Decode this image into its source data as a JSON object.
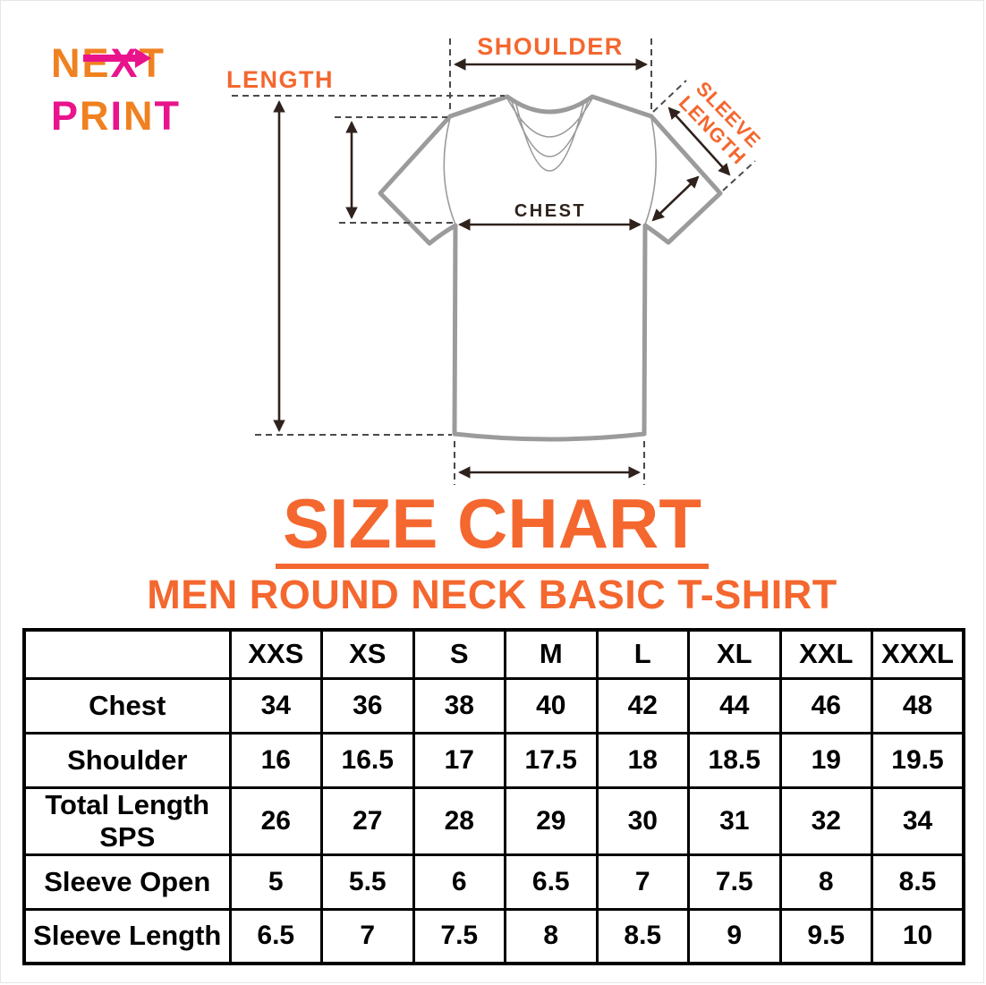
{
  "logo": {
    "line1": "NEXT",
    "line2": "PRINT",
    "line1_colors": [
      "o",
      "o",
      "m",
      "o"
    ],
    "line2_colors": [
      "m",
      "o",
      "m",
      "o",
      "m"
    ]
  },
  "diagram": {
    "labels": {
      "shoulder": "SHOULDER",
      "length": "LENGTH",
      "chest": "CHEST",
      "sleeve_line1": "SLEEVE",
      "sleeve_line2": "LENGTH"
    }
  },
  "title": "SIZE CHART",
  "subtitle": "MEN ROUND NECK BASIC T-SHIRT",
  "table": {
    "sizes": [
      "XXS",
      "XS",
      "S",
      "M",
      "L",
      "XL",
      "XXL",
      "XXXL"
    ],
    "rows": [
      {
        "label": "Chest",
        "values": [
          "34",
          "36",
          "38",
          "40",
          "42",
          "44",
          "46",
          "48"
        ]
      },
      {
        "label": "Shoulder",
        "values": [
          "16",
          "16.5",
          "17",
          "17.5",
          "18",
          "18.5",
          "19",
          "19.5"
        ]
      },
      {
        "label": "Total Length SPS",
        "values": [
          "26",
          "27",
          "28",
          "29",
          "30",
          "31",
          "32",
          "34"
        ]
      },
      {
        "label": "Sleeve Open",
        "values": [
          "5",
          "5.5",
          "6",
          "6.5",
          "7",
          "7.5",
          "8",
          "8.5"
        ]
      },
      {
        "label": "Sleeve Length",
        "values": [
          "6.5",
          "7",
          "7.5",
          "8",
          "8.5",
          "9",
          "9.5",
          "10"
        ]
      }
    ]
  },
  "chart_data": {
    "type": "table",
    "title": "SIZE CHART",
    "subtitle": "MEN ROUND NECK BASIC T-SHIRT",
    "columns": [
      "",
      "XXS",
      "XS",
      "S",
      "M",
      "L",
      "XL",
      "XXL",
      "XXXL"
    ],
    "rows": [
      [
        "Chest",
        34,
        36,
        38,
        40,
        42,
        44,
        46,
        48
      ],
      [
        "Shoulder",
        16,
        16.5,
        17,
        17.5,
        18,
        18.5,
        19,
        19.5
      ],
      [
        "Total Length SPS",
        26,
        27,
        28,
        29,
        30,
        31,
        32,
        34
      ],
      [
        "Sleeve Open",
        5,
        5.5,
        6,
        6.5,
        7,
        7.5,
        8,
        8.5
      ],
      [
        "Sleeve Length",
        6.5,
        7,
        7.5,
        8,
        8.5,
        9,
        9.5,
        10
      ]
    ]
  },
  "colors": {
    "accent_orange": "#F4672F",
    "logo_orange": "#F08121",
    "logo_magenta": "#E9138C",
    "shirt_gray": "#9B9B9B",
    "arrow_dark": "#2F221C"
  }
}
